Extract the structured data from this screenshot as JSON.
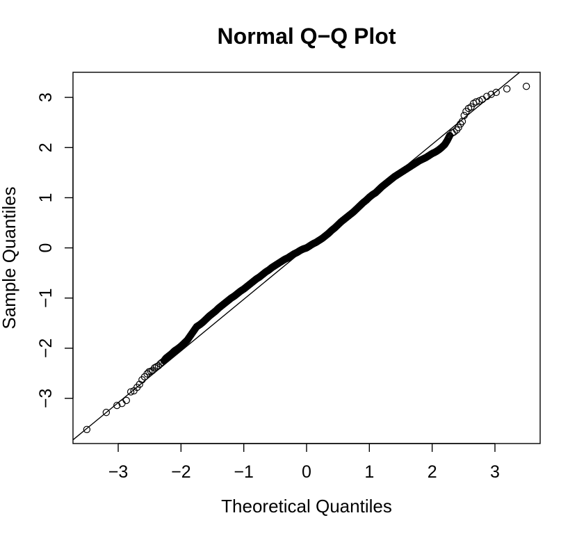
{
  "chart_data": {
    "type": "scatter",
    "title": "Normal Q−Q Plot",
    "xlabel": "Theoretical Quantiles",
    "ylabel": "Sample Quantiles",
    "xlim": [
      -3.72,
      3.72
    ],
    "ylim": [
      -3.9,
      3.5
    ],
    "x_ticks": [
      -3,
      -2,
      -1,
      0,
      1,
      2,
      3
    ],
    "x_tick_labels": [
      "−3",
      "−2",
      "−1",
      "0",
      "1",
      "2",
      "3"
    ],
    "y_ticks": [
      -3,
      -2,
      -1,
      0,
      1,
      2,
      3
    ],
    "y_tick_labels": [
      "−3",
      "−2",
      "−1",
      "0",
      "1",
      "2",
      "3"
    ],
    "grid": false,
    "marker": "open-circle",
    "reference_line": {
      "intercept": 0.005,
      "slope": 1.03
    },
    "sample_count_estimate": 1500,
    "series": [
      {
        "x": [
          -3.5,
          -3.19,
          -3.02,
          -2.94,
          -2.87,
          -2.8,
          -2.75,
          -2.7,
          -2.66,
          -2.62,
          -2.58,
          -2.54,
          -2.51,
          -2.48,
          -2.45,
          -2.42,
          -2.39,
          -2.36,
          -2.33,
          -2.3,
          -2.27,
          -2.24,
          -2.21,
          -2.18,
          -2.15,
          -2.1,
          -2.05,
          -2.0,
          -1.95,
          -1.9,
          -1.85,
          -1.8,
          -1.75,
          -1.7,
          -1.65,
          -1.6,
          -1.55,
          -1.5,
          -1.45,
          -1.4,
          -1.35,
          -1.3,
          -1.25,
          -1.2,
          -1.15,
          -1.1,
          -1.05,
          -1.0,
          -0.95,
          -0.9,
          -0.85,
          -0.8,
          -0.75,
          -0.7,
          -0.65,
          -0.6,
          -0.55,
          -0.5,
          -0.45,
          -0.4,
          -0.35,
          -0.3,
          -0.25,
          -0.2,
          -0.15,
          -0.1,
          -0.05,
          0.0,
          0.05,
          0.1,
          0.15,
          0.2,
          0.25,
          0.3,
          0.35,
          0.4,
          0.45,
          0.5,
          0.55,
          0.6,
          0.65,
          0.7,
          0.75,
          0.8,
          0.85,
          0.9,
          0.95,
          1.0,
          1.05,
          1.1,
          1.15,
          1.2,
          1.25,
          1.3,
          1.35,
          1.4,
          1.45,
          1.5,
          1.55,
          1.6,
          1.65,
          1.7,
          1.75,
          1.8,
          1.85,
          1.9,
          1.95,
          2.0,
          2.05,
          2.1,
          2.15,
          2.2,
          2.24,
          2.28,
          2.32,
          2.35,
          2.39,
          2.42,
          2.45,
          2.48,
          2.51,
          2.54,
          2.58,
          2.62,
          2.66,
          2.7,
          2.75,
          2.8,
          2.87,
          2.94,
          3.02,
          3.19,
          3.5
        ],
        "y": [
          -3.62,
          -3.28,
          -3.14,
          -3.1,
          -3.04,
          -2.87,
          -2.85,
          -2.78,
          -2.72,
          -2.63,
          -2.57,
          -2.51,
          -2.47,
          -2.46,
          -2.44,
          -2.39,
          -2.37,
          -2.35,
          -2.31,
          -2.28,
          -2.25,
          -2.2,
          -2.17,
          -2.14,
          -2.11,
          -2.05,
          -2.01,
          -1.96,
          -1.9,
          -1.84,
          -1.75,
          -1.66,
          -1.57,
          -1.53,
          -1.48,
          -1.42,
          -1.36,
          -1.31,
          -1.26,
          -1.2,
          -1.15,
          -1.1,
          -1.05,
          -1.0,
          -0.96,
          -0.91,
          -0.86,
          -0.82,
          -0.77,
          -0.72,
          -0.67,
          -0.62,
          -0.58,
          -0.53,
          -0.48,
          -0.44,
          -0.39,
          -0.35,
          -0.31,
          -0.27,
          -0.23,
          -0.2,
          -0.16,
          -0.12,
          -0.09,
          -0.05,
          -0.02,
          0.0,
          0.04,
          0.08,
          0.11,
          0.15,
          0.19,
          0.24,
          0.29,
          0.35,
          0.4,
          0.46,
          0.52,
          0.57,
          0.62,
          0.67,
          0.72,
          0.78,
          0.84,
          0.9,
          0.95,
          1.01,
          1.06,
          1.1,
          1.16,
          1.22,
          1.27,
          1.32,
          1.37,
          1.42,
          1.46,
          1.5,
          1.54,
          1.58,
          1.62,
          1.66,
          1.7,
          1.74,
          1.77,
          1.8,
          1.84,
          1.88,
          1.91,
          1.95,
          2.0,
          2.06,
          2.14,
          2.24,
          2.29,
          2.31,
          2.35,
          2.4,
          2.47,
          2.52,
          2.64,
          2.72,
          2.78,
          2.81,
          2.88,
          2.91,
          2.93,
          2.96,
          3.02,
          3.06,
          3.1,
          3.17,
          3.22
        ]
      }
    ]
  }
}
